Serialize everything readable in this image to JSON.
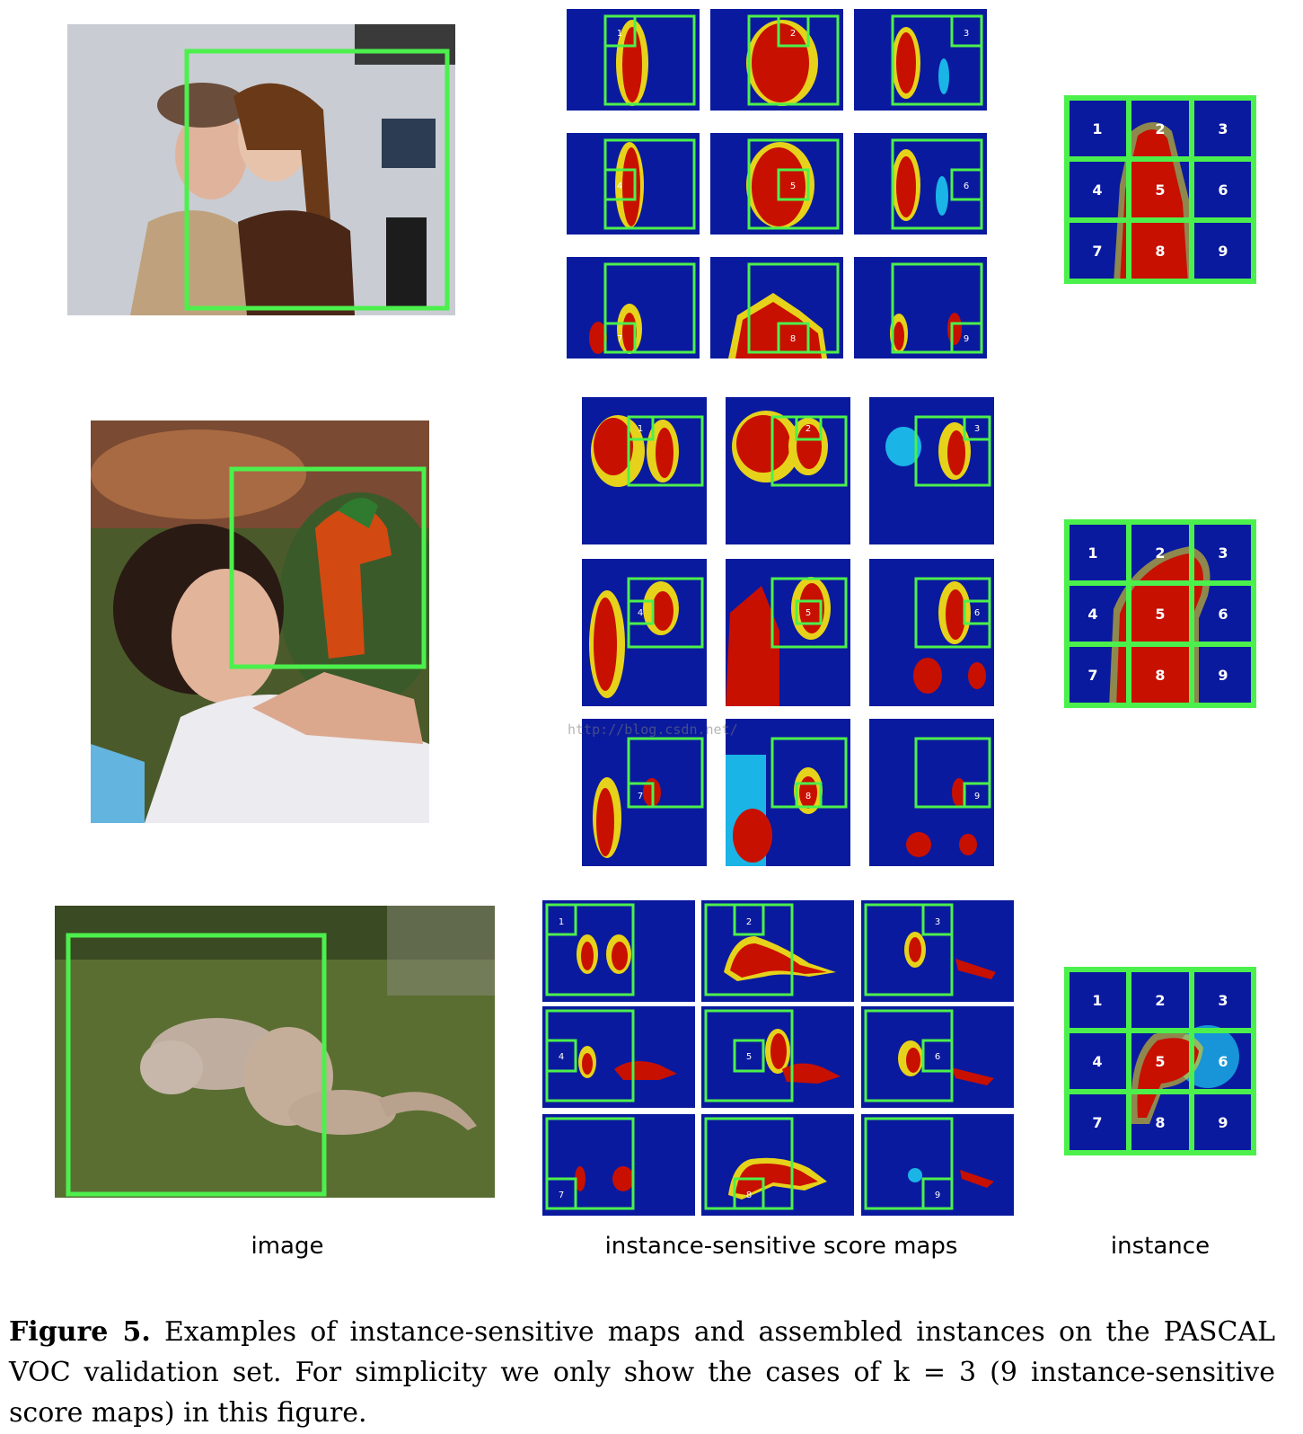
{
  "columns": {
    "image": "image",
    "score_maps": "instance-sensitive score maps",
    "instance": "instance"
  },
  "cell_labels": [
    "1",
    "2",
    "3",
    "4",
    "5",
    "6",
    "7",
    "8",
    "9"
  ],
  "watermark": "http://blog.csdn.net/",
  "caption": {
    "label": "Figure 5.",
    "text": " Examples of instance-sensitive maps and assembled instances on the PASCAL VOC validation set. For simplicity we only show the cases of k = 3 (9 instance-sensitive score maps) in this figure."
  },
  "colors": {
    "box_green": "#4cf04c",
    "map_blue": "#0a1a9e",
    "map_red": "#c81000"
  },
  "photo_subjects": [
    "two-people-photo",
    "woman-with-parrot-photo",
    "cats-on-grass-photo"
  ]
}
